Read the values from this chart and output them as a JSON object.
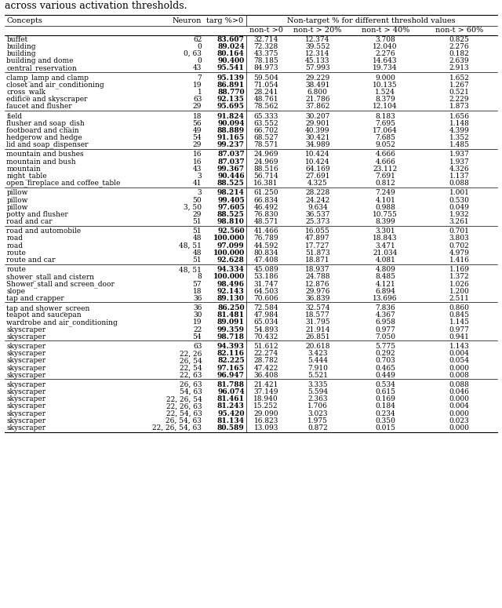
{
  "title": "across various activation thresholds.",
  "groups": [
    {
      "rows": [
        [
          "buffet",
          "62",
          "83.607",
          "32.714",
          "12.374",
          "3.708",
          "0.825"
        ],
        [
          "building",
          "0",
          "89.024",
          "72.328",
          "39.552",
          "12.040",
          "2.276"
        ],
        [
          "building",
          "0, 63",
          "80.164",
          "43.375",
          "12.314",
          "2.276",
          "0.182"
        ],
        [
          "building and dome",
          "0",
          "90.400",
          "78.185",
          "45.133",
          "14.643",
          "2.639"
        ],
        [
          "central_reservation",
          "43",
          "95.541",
          "84.973",
          "57.993",
          "19.734",
          "2.913"
        ]
      ]
    },
    {
      "rows": [
        [
          "clamp_lamp and clamp",
          "7",
          "95.139",
          "59.504",
          "29.229",
          "9.000",
          "1.652"
        ],
        [
          "closet and air_conditioning",
          "19",
          "86.891",
          "71.054",
          "38.491",
          "10.135",
          "1.267"
        ],
        [
          "cross_walk",
          "1",
          "88.770",
          "28.241",
          "6.800",
          "1.524",
          "0.521"
        ],
        [
          "edifice and skyscraper",
          "63",
          "92.135",
          "48.761",
          "21.786",
          "8.379",
          "2.229"
        ],
        [
          "faucet and flusher",
          "29",
          "95.695",
          "78.562",
          "37.862",
          "12.104",
          "1.873"
        ]
      ]
    },
    {
      "rows": [
        [
          "field",
          "18",
          "91.824",
          "65.333",
          "30.207",
          "8.183",
          "1.656"
        ],
        [
          "flusher and soap_dish",
          "56",
          "90.094",
          "63.552",
          "29.901",
          "7.695",
          "1.148"
        ],
        [
          "footboard and chain",
          "49",
          "88.889",
          "66.702",
          "40.399",
          "17.064",
          "4.399"
        ],
        [
          "hedgerow and hedge",
          "54",
          "91.165",
          "68.527",
          "30.421",
          "7.685",
          "1.352"
        ],
        [
          "lid and soap_dispenser",
          "29",
          "99.237",
          "78.571",
          "34.989",
          "9.052",
          "1.485"
        ]
      ]
    },
    {
      "rows": [
        [
          "mountain and bushes",
          "16",
          "87.037",
          "24.969",
          "10.424",
          "4.666",
          "1.937"
        ],
        [
          "mountain and bush",
          "16",
          "87.037",
          "24.969",
          "10.424",
          "4.666",
          "1.937"
        ],
        [
          "mountain",
          "43",
          "99.367",
          "88.516",
          "64.169",
          "23.112",
          "4.326"
        ],
        [
          "night_table",
          "3",
          "90.446",
          "56.714",
          "27.691",
          "7.691",
          "1.137"
        ],
        [
          "open_fireplace and coffee_table",
          "41",
          "88.525",
          "16.381",
          "4.325",
          "0.812",
          "0.088"
        ]
      ]
    },
    {
      "rows": [
        [
          "pillow",
          "3",
          "98.214",
          "61.250",
          "28.228",
          "7.249",
          "1.001"
        ],
        [
          "pillow",
          "50",
          "99.405",
          "66.834",
          "24.242",
          "4.101",
          "0.530"
        ],
        [
          "pillow",
          "3, 50",
          "97.605",
          "46.492",
          "9.634",
          "0.988",
          "0.049"
        ],
        [
          "potty and flusher",
          "29",
          "88.525",
          "76.830",
          "36.537",
          "10.755",
          "1.932"
        ],
        [
          "road and car",
          "51",
          "98.810",
          "48.571",
          "25.373",
          "8.399",
          "3.261"
        ]
      ]
    },
    {
      "rows": [
        [
          "road and automobile",
          "51",
          "92.560",
          "41.466",
          "16.055",
          "3.301",
          "0.701"
        ],
        [
          "road",
          "48",
          "100.000",
          "76.789",
          "47.897",
          "18.843",
          "3.803"
        ],
        [
          "road",
          "48, 51",
          "97.099",
          "44.592",
          "17.727",
          "3.471",
          "0.702"
        ],
        [
          "route",
          "48",
          "100.000",
          "80.834",
          "51.873",
          "21.034",
          "4.979"
        ],
        [
          "route and car",
          "51",
          "92.628",
          "47.408",
          "18.871",
          "4.081",
          "1.416"
        ]
      ]
    },
    {
      "rows": [
        [
          "route",
          "48, 51",
          "94.334",
          "45.089",
          "18.937",
          "4.809",
          "1.169"
        ],
        [
          "shower_stall and cistern",
          "8",
          "100.000",
          "53.186",
          "24.788",
          "8.485",
          "1.372"
        ],
        [
          "Shower_stall and screen_door",
          "57",
          "98.496",
          "31.747",
          "12.876",
          "4.121",
          "1.026"
        ],
        [
          "slope",
          "18",
          "92.143",
          "64.503",
          "29.976",
          "6.894",
          "1.200"
        ],
        [
          "tap and crapper",
          "36",
          "89.130",
          "70.606",
          "36.839",
          "13.696",
          "2.511"
        ]
      ]
    },
    {
      "rows": [
        [
          "tap and shower_screen",
          "36",
          "86.250",
          "72.584",
          "32.574",
          "7.836",
          "0.860"
        ],
        [
          "teapot and saucepan",
          "30",
          "81.481",
          "47.984",
          "18.577",
          "4.367",
          "0.845"
        ],
        [
          "wardrobe and air_conditioning",
          "19",
          "89.091",
          "65.034",
          "31.795",
          "6.958",
          "1.145"
        ],
        [
          "skyscraper",
          "22",
          "99.359",
          "54.893",
          "21.914",
          "0.977",
          "0.977"
        ],
        [
          "skyscraper",
          "54",
          "98.718",
          "70.432",
          "26.851",
          "7.050",
          "0.941"
        ]
      ]
    },
    {
      "rows": [
        [
          "skyscraper",
          "63",
          "94.393",
          "51.612",
          "20.618",
          "5.775",
          "1.143"
        ],
        [
          "skyscraper",
          "22, 26",
          "82.116",
          "22.274",
          "3.423",
          "0.292",
          "0.004"
        ],
        [
          "skyscraper",
          "26, 54",
          "82.225",
          "28.782",
          "5.444",
          "0.703",
          "0.054"
        ],
        [
          "skyscraper",
          "22, 54",
          "97.165",
          "47.422",
          "7.910",
          "0.465",
          "0.000"
        ],
        [
          "skyscraper",
          "22, 63",
          "96.947",
          "36.408",
          "5.521",
          "0.449",
          "0.008"
        ]
      ]
    },
    {
      "rows": [
        [
          "skyscraper",
          "26, 63",
          "81.788",
          "21.421",
          "3.335",
          "0.534",
          "0.088"
        ],
        [
          "skyscraper",
          "54, 63",
          "96.074",
          "37.149",
          "5.594",
          "0.615",
          "0.046"
        ],
        [
          "skyscraper",
          "22, 26, 54",
          "81.461",
          "18.940",
          "2.363",
          "0.169",
          "0.000"
        ],
        [
          "skyscraper",
          "22, 26, 63",
          "81.243",
          "15.252",
          "1.706",
          "0.184",
          "0.004"
        ],
        [
          "skyscraper",
          "22, 54, 63",
          "95.420",
          "29.090",
          "3.023",
          "0.234",
          "0.000"
        ],
        [
          "skyscraper",
          "26, 54, 63",
          "81.134",
          "16.823",
          "1.975",
          "0.350",
          "0.023"
        ],
        [
          "skyscraper",
          "22, 26, 54, 63",
          "80.589",
          "13.093",
          "0.872",
          "0.015",
          "0.000"
        ]
      ]
    }
  ]
}
